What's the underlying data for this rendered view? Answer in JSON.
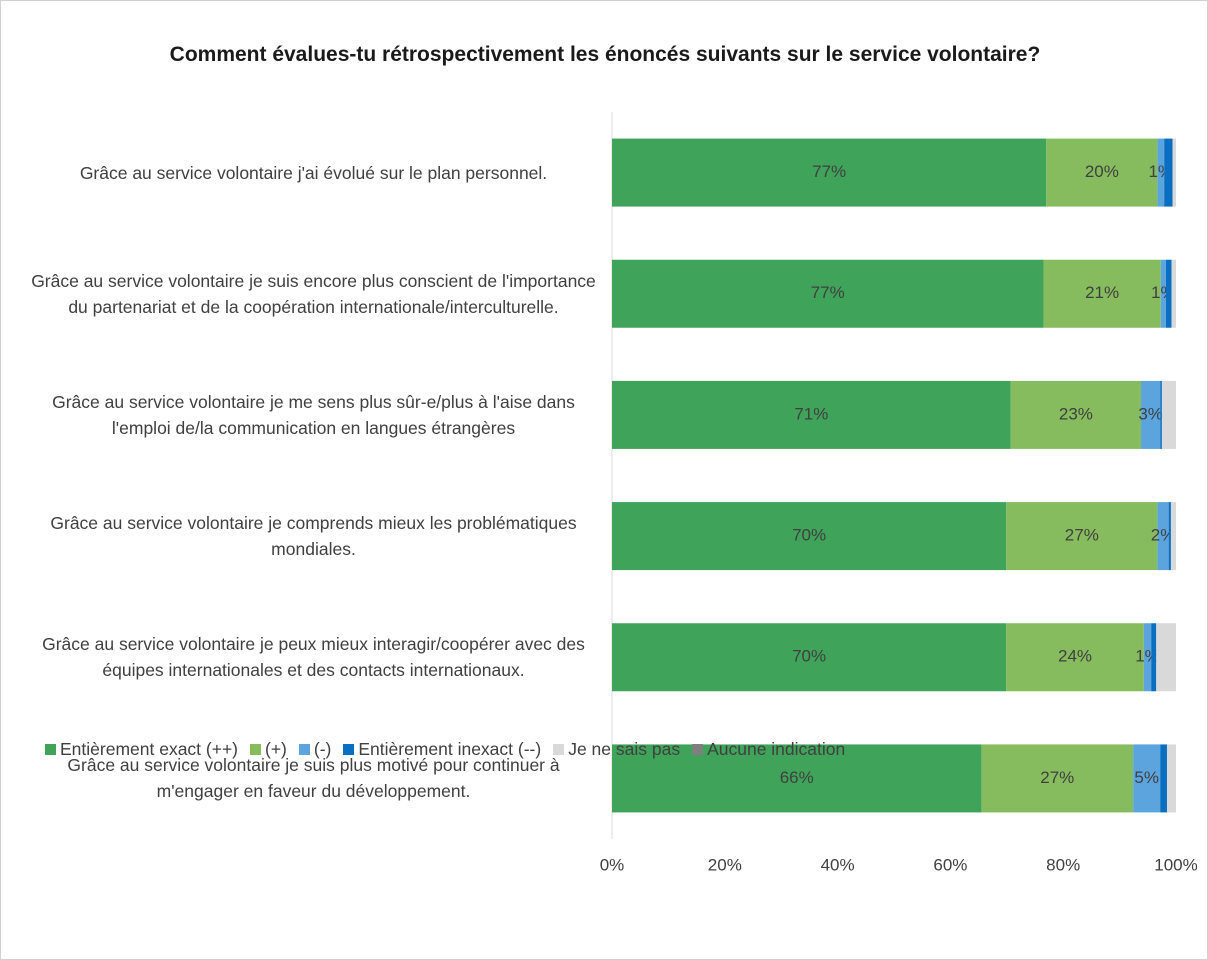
{
  "chart_data": {
    "type": "stacked-barh",
    "title": "Comment évalues-tu rétrospectivement les énoncés suivants sur le service volontaire?",
    "categories": [
      "Grâce au service volontaire j'ai évolué sur le plan personnel.",
      "Grâce au service volontaire je suis encore plus conscient de l'importance du partenariat et de la coopération internationale/interculturelle.",
      "Grâce au service volontaire je me sens plus sûr-e/plus à l'aise dans l'emploi de/la communication en langues étrangères",
      "Grâce au service volontaire je comprends mieux les problématiques mondiales.",
      "Grâce au service volontaire je peux mieux interagir/coopérer avec des équipes internationales et des contacts internationaux.",
      "Grâce au service volontaire je suis plus motivé pour continuer à m'engager en faveur du développement."
    ],
    "series": [
      {
        "name": "Entièrement exact (++)",
        "color": "#3fa35a",
        "values": [
          77,
          76.5,
          70.7,
          69.9,
          69.9,
          65.5
        ],
        "value_labels": [
          "77%",
          "77%",
          "71%",
          "70%",
          "70%",
          "66%"
        ]
      },
      {
        "name": "(+)",
        "color": "#86bc5e",
        "values": [
          19.7,
          20.8,
          23.1,
          26.8,
          24.4,
          26.9
        ],
        "value_labels": [
          "20%",
          "21%",
          "23%",
          "27%",
          "24%",
          "27%"
        ]
      },
      {
        "name": "(-)",
        "color": "#5ba4de",
        "values": [
          1.2,
          0.9,
          3.4,
          2,
          1.3,
          4.8
        ],
        "value_labels": [
          "1%",
          "1%",
          "3%",
          "2%",
          "1%",
          "5%"
        ]
      },
      {
        "name": "Entièrement inexact (--)",
        "color": "#0b6fc1",
        "values": [
          1.5,
          1,
          0.3,
          0.4,
          0.9,
          1.2
        ]
      },
      {
        "name": "Je ne sais pas",
        "color": "#d9d9d9",
        "values": [
          0.6,
          0.8,
          2.5,
          0.9,
          3.5,
          1.6
        ]
      },
      {
        "name": "Aucune indication",
        "color": "#7f7f7f",
        "values": [
          0,
          0,
          0,
          0,
          0,
          0
        ]
      }
    ],
    "xlim": [
      0,
      100
    ],
    "xticks": [
      {
        "value": 0,
        "label": "0%"
      },
      {
        "value": 20,
        "label": "20%"
      },
      {
        "value": 40,
        "label": "40%"
      },
      {
        "value": 60,
        "label": "60%"
      },
      {
        "value": 80,
        "label": "80%"
      },
      {
        "value": 100,
        "label": "100%"
      }
    ]
  }
}
